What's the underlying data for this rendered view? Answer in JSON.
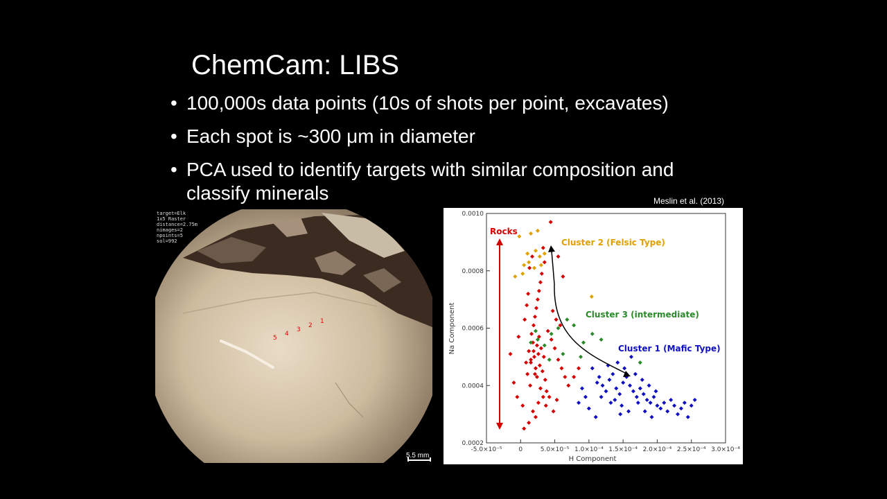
{
  "slide": {
    "title": "ChemCam: LIBS",
    "bullets": [
      "100,000s data points (10s of shots per point, excavates)",
      "Each spot is ~300 μm in diameter",
      "PCA used to identify targets with similar composition and classify minerals"
    ],
    "citation": "Meslin et al. (2013)"
  },
  "photo": {
    "meta_lines": "target=Elk\n1x5 Raster\ndistance=2.75m\nnimages=2\nnpoints=5\nsol=992",
    "raster_labels": [
      "1",
      "2",
      "3",
      "4",
      "5"
    ],
    "scale_label": "5.5 mm"
  },
  "chart_data": {
    "type": "scatter",
    "xlabel": "H Component",
    "ylabel": "Na Component",
    "xlim": [
      -5e-05,
      0.0003
    ],
    "ylim": [
      0.0002,
      0.001
    ],
    "x_ticks": [
      "-5.0×10⁻⁵",
      "0",
      "5.0×10⁻⁵",
      "1.0×10⁻⁴",
      "1.5×10⁻⁴",
      "2.0×10⁻⁴",
      "2.5×10⁻⁴",
      "3.0×10⁻⁴"
    ],
    "y_ticks": [
      "0.0002",
      "0.0004",
      "0.0006",
      "0.0008",
      "0.0010"
    ],
    "annotations": {
      "rocks": "Rocks",
      "cluster2": "Cluster 2 (Felsic Type)",
      "cluster3": "Cluster 3 (intermediate)",
      "cluster1": "Cluster 1 (Mafic Type)"
    },
    "series": [
      {
        "color": "#d40000",
        "points": [
          [
            3e-06,
            0.00033
          ],
          [
            8e-06,
            0.00048
          ],
          [
            1.2e-05,
            0.00052
          ],
          [
            1.5e-05,
            0.00049
          ],
          [
            1.8e-05,
            0.00055
          ],
          [
            2e-05,
            0.0005
          ],
          [
            2.2e-05,
            0.00046
          ],
          [
            2.4e-05,
            0.00054
          ],
          [
            2.6e-05,
            0.00051
          ],
          [
            2.8e-05,
            0.00047
          ],
          [
            3e-05,
            0.00053
          ],
          [
            3.2e-05,
            0.00045
          ],
          [
            3.4e-05,
            0.0005
          ],
          [
            3.6e-05,
            0.00042
          ],
          [
            1e-05,
            0.00044
          ],
          [
            1.4e-05,
            0.0004
          ],
          [
            1.6e-05,
            0.00058
          ],
          [
            1.9e-05,
            0.00061
          ],
          [
            2.1e-05,
            0.00064
          ],
          [
            2.3e-05,
            0.00067
          ],
          [
            2.5e-05,
            0.0007
          ],
          [
            2.7e-05,
            0.00073
          ],
          [
            2.9e-05,
            0.00076
          ],
          [
            3.1e-05,
            0.00079
          ],
          [
            1.3e-05,
            0.00081
          ],
          [
            1.7e-05,
            0.00085
          ],
          [
            3.5e-05,
            0.00083
          ],
          [
            3.3e-05,
            0.00088
          ],
          [
            4.4e-05,
            0.00097
          ],
          [
            4e-05,
            0.00059
          ],
          [
            4.5e-05,
            0.00056
          ],
          [
            5e-05,
            0.00053
          ],
          [
            5.5e-05,
            0.00049
          ],
          [
            6e-05,
            0.00046
          ],
          [
            6.5e-05,
            0.00043
          ],
          [
            7e-05,
            0.0004
          ],
          [
            3.8e-05,
            0.00038
          ],
          [
            4.2e-05,
            0.00036
          ],
          [
            2.6e-05,
            0.00034
          ],
          [
            1.8e-05,
            0.00031
          ],
          [
            2.2e-05,
            0.00029
          ],
          [
            1.2e-05,
            0.00027
          ],
          [
            5e-06,
            0.00025
          ],
          [
            -5e-06,
            0.00036
          ],
          [
            -1e-05,
            0.00041
          ],
          [
            -1.5e-05,
            0.00051
          ],
          [
            -3e-06,
            0.00057
          ],
          [
            6e-06,
            0.00063
          ],
          [
            9e-06,
            0.00068
          ],
          [
            1.1e-05,
            0.00072
          ],
          [
            4.7e-05,
            0.00066
          ],
          [
            5.2e-05,
            0.00063
          ],
          [
            5.8e-05,
            0.00061
          ],
          [
            6.2e-05,
            0.00078
          ],
          [
            5.5e-05,
            0.00085
          ],
          [
            2.4e-05,
            0.00043
          ],
          [
            2.9e-05,
            0.00039
          ],
          [
            3.3e-05,
            0.00036
          ],
          [
            3.7e-05,
            0.00033
          ],
          [
            4.8e-05,
            0.00031
          ],
          [
            5.3e-05,
            0.00035
          ],
          [
            7.8e-05,
            0.00043
          ],
          [
            8.5e-05,
            0.00046
          ],
          [
            1.9e-05,
            0.00052
          ],
          [
            2.7e-05,
            0.00057
          ],
          [
            1.5e-05,
            0.00048
          ],
          [
            2.1e-05,
            0.00044
          ]
        ]
      },
      {
        "color": "#e0a000",
        "points": [
          [
            -2e-06,
            0.00092
          ],
          [
            1.5e-05,
            0.00093
          ],
          [
            2.5e-05,
            0.00094
          ],
          [
            2.2e-05,
            0.00087
          ],
          [
            2.8e-05,
            0.00085
          ],
          [
            1e-05,
            0.00086
          ],
          [
            5e-06,
            0.00082
          ],
          [
            2e-05,
            0.00081
          ],
          [
            3.5e-05,
            0.00086
          ],
          [
            -8e-06,
            0.00078
          ],
          [
            3e-06,
            0.00079
          ],
          [
            3e-05,
            0.00082
          ],
          [
            1.2e-05,
            0.00083
          ],
          [
            0.000104,
            0.00071
          ]
        ]
      },
      {
        "color": "#2a8a2a",
        "points": [
          [
            1.5e-05,
            0.00055
          ],
          [
            2.5e-05,
            0.00056
          ],
          [
            3.5e-05,
            0.00054
          ],
          [
            4.5e-05,
            0.00058
          ],
          [
            5.5e-05,
            0.0006
          ],
          [
            6.8e-05,
            0.00063
          ],
          [
            7.8e-05,
            0.00061
          ],
          [
            9.2e-05,
            0.00055
          ],
          [
            0.000105,
            0.00058
          ],
          [
            0.000118,
            0.00056
          ],
          [
            4.2e-05,
            0.00049
          ],
          [
            6.2e-05,
            0.00051
          ],
          [
            8.8e-05,
            0.0005
          ],
          [
            0.000175,
            0.00048
          ],
          [
            2.2e-05,
            0.00059
          ]
        ]
      },
      {
        "color": "#1010c0",
        "points": [
          [
            0.000105,
            0.00046
          ],
          [
            0.000115,
            0.00043
          ],
          [
            0.00012,
            0.0004
          ],
          [
            0.000125,
            0.00038
          ],
          [
            0.00013,
            0.00042
          ],
          [
            0.000135,
            0.00044
          ],
          [
            0.00014,
            0.00039
          ],
          [
            0.000145,
            0.00037
          ],
          [
            0.00015,
            0.00041
          ],
          [
            0.000155,
            0.00043
          ],
          [
            0.00016,
            0.0004
          ],
          [
            0.000165,
            0.00038
          ],
          [
            0.00017,
            0.00036
          ],
          [
            0.000175,
            0.00039
          ],
          [
            0.00018,
            0.00037
          ],
          [
            0.000185,
            0.00035
          ],
          [
            0.00019,
            0.00034
          ],
          [
            0.000195,
            0.00036
          ],
          [
            0.0002,
            0.00033
          ],
          [
            0.000205,
            0.00032
          ],
          [
            0.00021,
            0.00034
          ],
          [
            0.000215,
            0.00031
          ],
          [
            0.00022,
            0.00035
          ],
          [
            0.000225,
            0.00033
          ],
          [
            0.00023,
            0.0003
          ],
          [
            0.000235,
            0.00032
          ],
          [
            0.00024,
            0.00034
          ],
          [
            0.000245,
            0.00029
          ],
          [
            0.00025,
            0.00033
          ],
          [
            0.000255,
            0.00035
          ],
          [
            9.5e-05,
            0.00036
          ],
          [
            0.0001,
            0.00032
          ],
          [
            0.00011,
            0.00029
          ],
          [
            8.5e-05,
            0.00034
          ],
          [
            9e-05,
            0.00039
          ],
          [
            0.000138,
            0.00035
          ],
          [
            0.000148,
            0.00033
          ],
          [
            0.000158,
            0.00031
          ],
          [
            0.000168,
            0.00044
          ],
          [
            0.000152,
            0.00046
          ],
          [
            0.000142,
            0.00048
          ],
          [
            0.000162,
            0.0005
          ],
          [
            0.000128,
            0.00047
          ],
          [
            0.000118,
            0.00036
          ],
          [
            0.000178,
            0.00042
          ],
          [
            0.000188,
            0.0004
          ],
          [
            0.000198,
            0.00038
          ],
          [
            0.000132,
            0.00034
          ],
          [
            0.000146,
            0.0003
          ],
          [
            0.000112,
            0.00041
          ],
          [
            0.000172,
            0.00034
          ],
          [
            0.000182,
            0.00031
          ],
          [
            0.000192,
            0.00029
          ]
        ]
      }
    ]
  }
}
